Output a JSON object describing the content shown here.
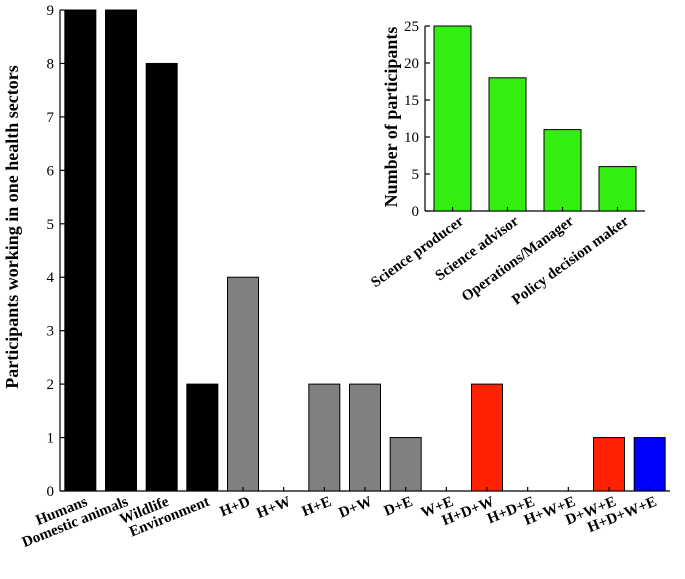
{
  "chart_data": [
    {
      "type": "bar",
      "ylabel": "Participants working in one health sectors",
      "xlabel": "",
      "ylim": [
        0,
        9
      ],
      "yticks": [
        0,
        1,
        2,
        3,
        4,
        5,
        6,
        7,
        8,
        9
      ],
      "categories": [
        "Humans",
        "Domestic animals",
        "Wildlife",
        "Environment",
        "H+D",
        "H+W",
        "H+E",
        "D+W",
        "D+E",
        "W+E",
        "H+D+W",
        "H+D+E",
        "H+W+E",
        "D+W+E",
        "H+D+W+E"
      ],
      "values": [
        9,
        9,
        8,
        2,
        4,
        0,
        2,
        2,
        1,
        0,
        2,
        0,
        0,
        1,
        1
      ],
      "bar_colors": [
        "#000000",
        "#000000",
        "#000000",
        "#000000",
        "#808080",
        "#808080",
        "#808080",
        "#808080",
        "#808080",
        "#808080",
        "#ff2200",
        "#ff2200",
        "#ff2200",
        "#ff2200",
        "#0000ff"
      ],
      "grid": false
    },
    {
      "type": "bar",
      "ylabel": "Number of participants",
      "xlabel": "",
      "ylim": [
        0,
        25
      ],
      "yticks": [
        0,
        5,
        10,
        15,
        20,
        25
      ],
      "categories": [
        "Science producer",
        "Science advisor",
        "Operations/Manager",
        "Policy decision maker"
      ],
      "values": [
        25,
        18,
        11,
        6
      ],
      "bar_colors": [
        "#33ee11",
        "#33ee11",
        "#33ee11",
        "#33ee11"
      ],
      "grid": false
    }
  ]
}
